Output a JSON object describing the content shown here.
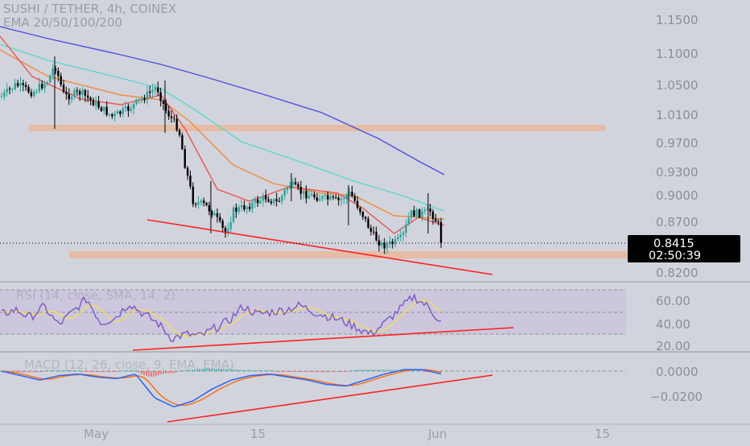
{
  "header": {
    "symbol_line": "SUSHI / TETHER, 4h, COINEX",
    "ema_line": "EMA 20/50/100/200"
  },
  "colors": {
    "background": "#d1d4dc",
    "candle_up": "#26a69a",
    "candle_down": "#000000",
    "ema20": "#ef5350",
    "ema50": "#f08a3c",
    "ema100": "#5fd6d0",
    "ema200": "#4d4ee0",
    "zone": "#e8b9a0",
    "trendline": "#ff2020",
    "rsi": "#7e57c2",
    "rsi_ma": "#f5e04a",
    "macd": "#2962ff",
    "signal": "#ff6d00",
    "price_tag_bg": "#000000",
    "price_tag_text": "#ffffff",
    "axis_text": "#787b86"
  },
  "price_axis": {
    "labels": [
      "1.1500",
      "1.1000",
      "1.0500",
      "1.0100",
      "0.9700",
      "0.9300",
      "0.9000",
      "0.8700",
      "0.8200"
    ],
    "current_price": "0.8415",
    "countdown": "02:50:39"
  },
  "rsi_panel": {
    "label": "RSI (14, close, SMA, 14, 2)",
    "axis_labels": [
      "60.00",
      "40.00",
      "20.00"
    ]
  },
  "macd_panel": {
    "label": "MACD (12, 26, close, 9, EMA, EMA)",
    "axis_labels": [
      "0.0000",
      "−0.0200"
    ]
  },
  "time_axis": {
    "labels": [
      "May",
      "15",
      "Jun",
      "15"
    ]
  },
  "chart_data": [
    {
      "type": "candlestick",
      "title": "SUSHI / TETHER, 4h, COINEX",
      "ylim": [
        0.8,
        1.16
      ],
      "yscale": "log",
      "xlabels": [
        "May",
        "15",
        "Jun",
        "15"
      ],
      "approx_close_path": [
        {
          "t": "start",
          "price": 1.05
        },
        {
          "t": "late Apr",
          "price": 1.06
        },
        {
          "t": "early May",
          "price": 1.01
        },
        {
          "t": "May 7",
          "price": 1.055
        },
        {
          "t": "May 9",
          "price": 0.98
        },
        {
          "t": "May 10",
          "price": 0.88
        },
        {
          "t": "May 12",
          "price": 0.855
        },
        {
          "t": "May 17",
          "price": 0.92
        },
        {
          "t": "May 22",
          "price": 0.905
        },
        {
          "t": "May 26",
          "price": 0.85
        },
        {
          "t": "May 27",
          "price": 0.835
        },
        {
          "t": "May 29",
          "price": 0.9
        },
        {
          "t": "May 31",
          "price": 0.8415
        }
      ],
      "series": [
        {
          "name": "EMA 20",
          "values_approx": [
            1.08,
            1.03,
            0.98,
            0.9,
            0.89,
            0.86,
            0.875
          ]
        },
        {
          "name": "EMA 50",
          "values_approx": [
            1.09,
            1.04,
            1.0,
            0.92,
            0.9,
            0.87,
            0.88
          ]
        },
        {
          "name": "EMA 100",
          "values_approx": [
            1.1,
            1.06,
            1.02,
            0.95,
            0.91,
            0.89,
            0.885
          ]
        },
        {
          "name": "EMA 200",
          "values_approx": [
            1.14,
            1.09,
            1.06,
            1.0,
            0.96,
            0.93,
            0.925
          ]
        }
      ],
      "zones": [
        {
          "price_low": 0.985,
          "price_high": 0.995,
          "from": "start",
          "to": "May 31"
        },
        {
          "price_low": 0.832,
          "price_high": 0.842,
          "from": "late Apr",
          "to": "end"
        }
      ],
      "trendlines": [
        {
          "from_price": 0.87,
          "to_price": 0.815,
          "desc": "descending support"
        }
      ],
      "current_price": 0.8415
    },
    {
      "type": "line",
      "title": "RSI (14, close, SMA, 14, 2)",
      "ylim": [
        20,
        70
      ],
      "band": [
        30,
        70
      ],
      "rsi_values_approx": [
        48,
        52,
        45,
        55,
        38,
        50,
        62,
        40,
        45,
        58,
        48,
        40,
        26,
        30,
        28,
        35,
        42,
        55,
        48,
        50,
        52,
        56,
        50,
        46,
        42,
        36,
        30,
        40,
        52,
        64,
        55,
        40
      ],
      "trendline": {
        "from": 24,
        "to": 42
      }
    },
    {
      "type": "line",
      "title": "MACD (12, 26, close, 9, EMA, EMA)",
      "ylim": [
        -0.03,
        0.008
      ],
      "macd_values_approx": [
        0.0,
        -0.003,
        -0.006,
        -0.003,
        -0.002,
        -0.004,
        -0.005,
        -0.002,
        -0.018,
        -0.024,
        -0.02,
        -0.012,
        -0.006,
        -0.003,
        -0.002,
        -0.004,
        -0.006,
        -0.009,
        -0.01,
        -0.006,
        -0.002,
        0.001,
        0.001,
        -0.002
      ],
      "trendline": {
        "from": -0.027,
        "to": -0.002
      }
    }
  ]
}
